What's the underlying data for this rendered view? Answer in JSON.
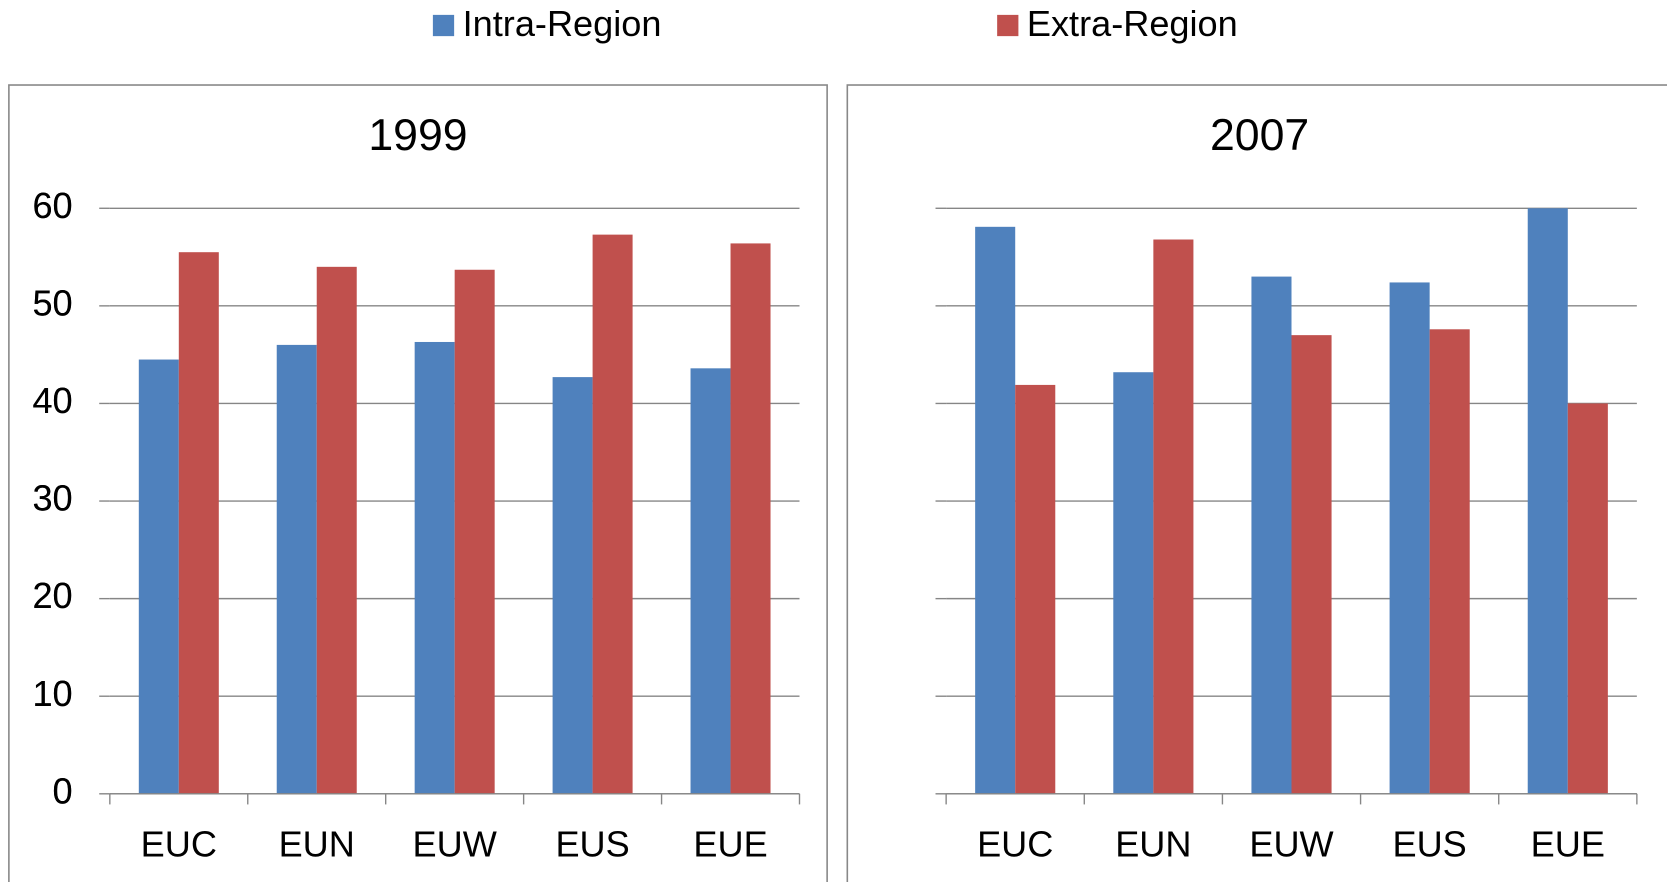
{
  "chart_data": [
    {
      "type": "bar",
      "title": "1999",
      "categories": [
        "EUC",
        "EUN",
        "EUW",
        "EUS",
        "EUE"
      ],
      "series": [
        {
          "name": "Intra-Region",
          "color": "#4f81bd",
          "values": [
            44.5,
            46,
            46.3,
            42.7,
            43.6
          ]
        },
        {
          "name": "Extra-Region",
          "color": "#c0504d",
          "values": [
            55.5,
            54,
            53.7,
            57.3,
            56.4
          ]
        }
      ],
      "ylim": [
        0,
        60
      ],
      "yticks": [
        0,
        10,
        20,
        30,
        40,
        50,
        60
      ],
      "grid": true,
      "legend": "top"
    },
    {
      "type": "bar",
      "title": "2007",
      "categories": [
        "EUC",
        "EUN",
        "EUW",
        "EUS",
        "EUE"
      ],
      "series": [
        {
          "color": "#4f81bd",
          "values": [
            58.1,
            43.2,
            53,
            52.4,
            60
          ]
        },
        {
          "color": "#c0504d",
          "values": [
            41.9,
            56.8,
            47,
            47.6,
            40
          ]
        }
      ],
      "ylim": [
        0,
        60
      ],
      "yticks": [
        0,
        10,
        20,
        30,
        40,
        50,
        60
      ],
      "grid": true
    }
  ]
}
